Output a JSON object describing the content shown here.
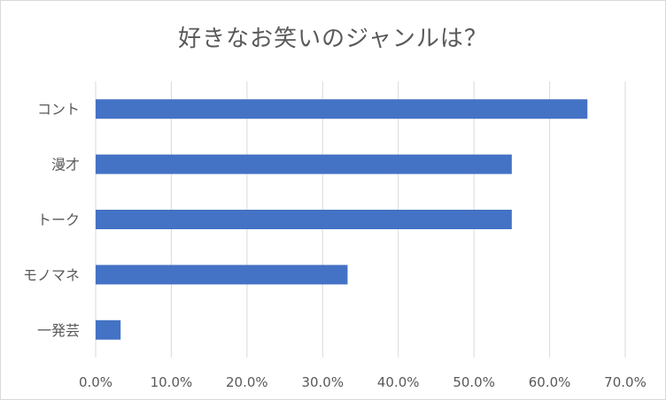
{
  "chart_data": {
    "type": "bar",
    "orientation": "horizontal",
    "title": "好きなお笑いのジャンルは？",
    "categories": [
      "コント",
      "漫才",
      "トーク",
      "モノマネ",
      "一発芸"
    ],
    "values": [
      65.0,
      55.0,
      55.0,
      33.3,
      3.3
    ],
    "xlim": [
      0,
      70
    ],
    "xticks": [
      "0.0%",
      "10.0%",
      "20.0%",
      "30.0%",
      "40.0%",
      "50.0%",
      "60.0%",
      "70.0%"
    ],
    "grid": true,
    "legend": "none",
    "bar_color": "#4472c4",
    "grid_color": "#d9d9d9",
    "text_color": "#595959"
  }
}
